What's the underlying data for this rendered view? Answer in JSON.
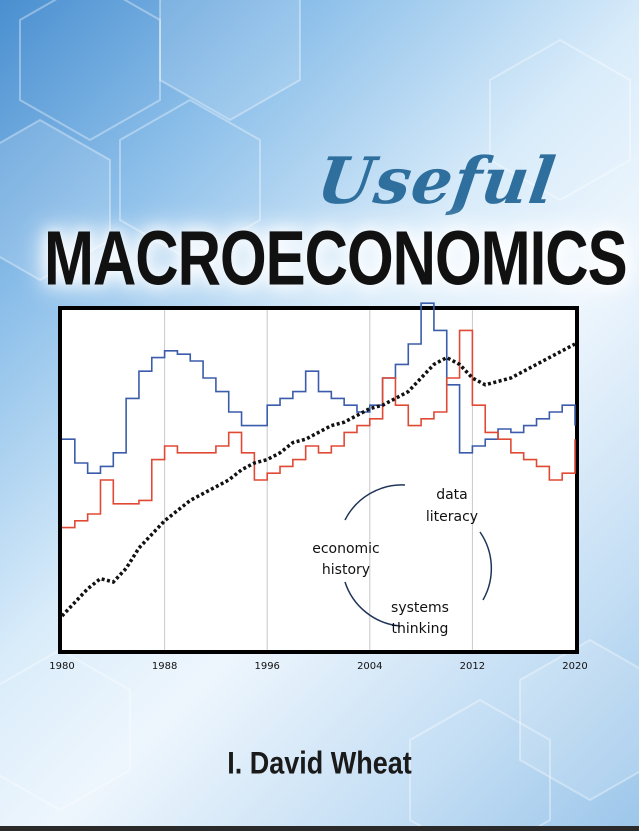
{
  "cover": {
    "subtitle": "Useful",
    "title": "MACROECONOMICS",
    "author": "I. David Wheat"
  },
  "chart_data": {
    "type": "line",
    "title": "",
    "xlabel": "",
    "ylabel": "",
    "xlim": [
      1980,
      2020
    ],
    "ylim": [
      0,
      100
    ],
    "x_ticks": [
      1980,
      1988,
      1996,
      2004,
      2012,
      2020
    ],
    "grid": "vertical",
    "series": [
      {
        "color": "#3b5cab",
        "style": "step",
        "points": [
          [
            1980,
            62
          ],
          [
            1981,
            55
          ],
          [
            1982,
            52
          ],
          [
            1983,
            54
          ],
          [
            1984,
            58
          ],
          [
            1985,
            74
          ],
          [
            1986,
            82
          ],
          [
            1987,
            86
          ],
          [
            1988,
            88
          ],
          [
            1989,
            87
          ],
          [
            1990,
            85
          ],
          [
            1991,
            80
          ],
          [
            1992,
            76
          ],
          [
            1993,
            70
          ],
          [
            1994,
            66
          ],
          [
            1995,
            66
          ],
          [
            1996,
            72
          ],
          [
            1997,
            74
          ],
          [
            1998,
            76
          ],
          [
            1999,
            82
          ],
          [
            2000,
            76
          ],
          [
            2001,
            74
          ],
          [
            2002,
            72
          ],
          [
            2003,
            70
          ],
          [
            2004,
            72
          ],
          [
            2005,
            80
          ],
          [
            2006,
            84
          ],
          [
            2007,
            90
          ],
          [
            2008,
            102
          ],
          [
            2009,
            94
          ],
          [
            2010,
            78
          ],
          [
            2011,
            58
          ],
          [
            2012,
            60
          ],
          [
            2013,
            62
          ],
          [
            2014,
            65
          ],
          [
            2015,
            64
          ],
          [
            2016,
            66
          ],
          [
            2017,
            68
          ],
          [
            2018,
            70
          ],
          [
            2019,
            72
          ],
          [
            2020,
            66
          ]
        ]
      },
      {
        "color": "#e04a35",
        "style": "step",
        "points": [
          [
            1980,
            36
          ],
          [
            1981,
            38
          ],
          [
            1982,
            40
          ],
          [
            1983,
            50
          ],
          [
            1984,
            43
          ],
          [
            1985,
            43
          ],
          [
            1986,
            44
          ],
          [
            1987,
            56
          ],
          [
            1988,
            60
          ],
          [
            1989,
            58
          ],
          [
            1990,
            58
          ],
          [
            1991,
            58
          ],
          [
            1992,
            60
          ],
          [
            1993,
            64
          ],
          [
            1994,
            58
          ],
          [
            1995,
            50
          ],
          [
            1996,
            52
          ],
          [
            1997,
            54
          ],
          [
            1998,
            56
          ],
          [
            1999,
            60
          ],
          [
            2000,
            58
          ],
          [
            2001,
            60
          ],
          [
            2002,
            64
          ],
          [
            2003,
            66
          ],
          [
            2004,
            68
          ],
          [
            2005,
            80
          ],
          [
            2006,
            72
          ],
          [
            2007,
            66
          ],
          [
            2008,
            68
          ],
          [
            2009,
            70
          ],
          [
            2010,
            80
          ],
          [
            2011,
            94
          ],
          [
            2012,
            72
          ],
          [
            2013,
            64
          ],
          [
            2014,
            62
          ],
          [
            2015,
            58
          ],
          [
            2016,
            56
          ],
          [
            2017,
            54
          ],
          [
            2018,
            50
          ],
          [
            2019,
            52
          ],
          [
            2020,
            62
          ]
        ]
      },
      {
        "color": "#111111",
        "style": "dotted",
        "points": [
          [
            1980,
            10
          ],
          [
            1981,
            14
          ],
          [
            1982,
            18
          ],
          [
            1983,
            21
          ],
          [
            1984,
            20
          ],
          [
            1985,
            24
          ],
          [
            1986,
            30
          ],
          [
            1987,
            34
          ],
          [
            1988,
            38
          ],
          [
            1989,
            41
          ],
          [
            1990,
            44
          ],
          [
            1991,
            46
          ],
          [
            1992,
            48
          ],
          [
            1993,
            50
          ],
          [
            1994,
            53
          ],
          [
            1995,
            55
          ],
          [
            1996,
            56
          ],
          [
            1997,
            58
          ],
          [
            1998,
            61
          ],
          [
            1999,
            62
          ],
          [
            2000,
            64
          ],
          [
            2001,
            66
          ],
          [
            2002,
            67
          ],
          [
            2003,
            69
          ],
          [
            2004,
            71
          ],
          [
            2005,
            72
          ],
          [
            2006,
            74
          ],
          [
            2007,
            76
          ],
          [
            2008,
            80
          ],
          [
            2009,
            84
          ],
          [
            2010,
            86
          ],
          [
            2011,
            84
          ],
          [
            2012,
            80
          ],
          [
            2013,
            78
          ],
          [
            2014,
            79
          ],
          [
            2015,
            80
          ],
          [
            2016,
            82
          ],
          [
            2017,
            84
          ],
          [
            2018,
            86
          ],
          [
            2019,
            88
          ],
          [
            2020,
            90
          ]
        ]
      }
    ],
    "annotations": {
      "data_literacy": [
        "data",
        "literacy"
      ],
      "economic_history": [
        "economic",
        "history"
      ],
      "systems_thinking": [
        "systems",
        "thinking"
      ]
    }
  }
}
